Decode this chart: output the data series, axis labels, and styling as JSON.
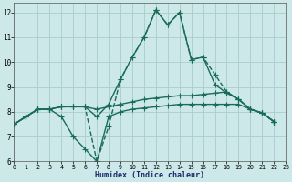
{
  "bg_color": "#cce8e8",
  "grid_color": "#aacccc",
  "line_color": "#1a6b5a",
  "xlabel": "Humidex (Indice chaleur)",
  "xlim": [
    0,
    23
  ],
  "ylim": [
    6,
    12.4
  ],
  "yticks": [
    6,
    7,
    8,
    9,
    10,
    11,
    12
  ],
  "xticks": [
    0,
    1,
    2,
    3,
    4,
    5,
    6,
    7,
    8,
    9,
    10,
    11,
    12,
    13,
    14,
    15,
    16,
    17,
    18,
    19,
    20,
    21,
    22,
    23
  ],
  "x": [
    0,
    1,
    2,
    3,
    4,
    5,
    6,
    7,
    8,
    9,
    10,
    11,
    12,
    13,
    14,
    15,
    16,
    17,
    18,
    19,
    20,
    21,
    22
  ],
  "series": [
    [
      7.5,
      7.8,
      8.1,
      8.1,
      8.2,
      8.2,
      8.2,
      6.0,
      7.4,
      9.3,
      10.2,
      11.0,
      12.1,
      11.5,
      12.0,
      10.1,
      10.2,
      9.5,
      8.8,
      8.5,
      8.1,
      7.95,
      7.6
    ],
    [
      7.5,
      7.8,
      8.1,
      8.1,
      8.2,
      8.2,
      8.2,
      7.8,
      8.3,
      9.3,
      10.2,
      11.0,
      12.1,
      11.5,
      12.0,
      10.1,
      10.2,
      9.1,
      8.75,
      8.5,
      8.1,
      7.95,
      7.6
    ],
    [
      7.5,
      7.8,
      8.1,
      8.1,
      8.2,
      8.2,
      8.2,
      8.1,
      8.2,
      8.3,
      8.4,
      8.5,
      8.55,
      8.6,
      8.65,
      8.65,
      8.7,
      8.75,
      8.8,
      8.5,
      8.1,
      7.95,
      7.6
    ],
    [
      7.5,
      7.8,
      8.1,
      8.1,
      7.8,
      7.0,
      6.5,
      6.0,
      7.8,
      8.0,
      8.1,
      8.15,
      8.2,
      8.25,
      8.3,
      8.3,
      8.3,
      8.3,
      8.3,
      8.3,
      8.1,
      7.95,
      7.6
    ]
  ],
  "linestyles": [
    "--",
    "-",
    "-",
    "-"
  ],
  "marker": "+",
  "markersize": 4,
  "linewidth": 1.0
}
